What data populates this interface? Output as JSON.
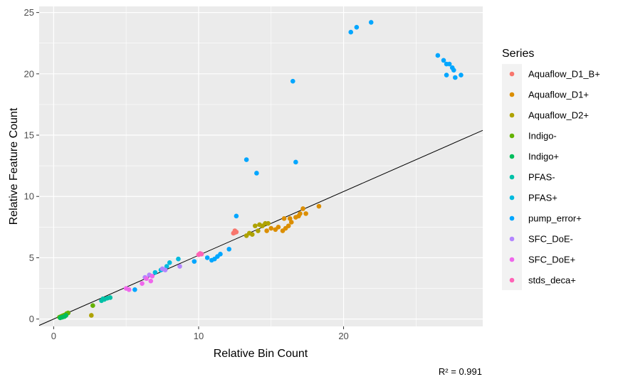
{
  "chart_data": {
    "type": "scatter",
    "xlabel": "Relative Bin Count",
    "ylabel": "Relative Feature Count",
    "xlim": [
      -1,
      29.6
    ],
    "ylim": [
      -0.6,
      25.5
    ],
    "x_ticks": [
      0,
      10,
      20
    ],
    "y_ticks": [
      0,
      5,
      10,
      15,
      20,
      25
    ],
    "x_tick_labels": [
      "0",
      "10",
      "20"
    ],
    "y_tick_labels": [
      "0",
      "5",
      "10",
      "15",
      "20",
      "25"
    ],
    "grid": true,
    "legend": {
      "title": "Series",
      "position": "right"
    },
    "caption": "R² = 0.991",
    "fit_line": {
      "slope": 0.52,
      "intercept": 0.0
    },
    "series": [
      {
        "name": "Aquaflow_D1_B+",
        "color": "#F8766D",
        "points": [
          [
            12.4,
            7.0
          ],
          [
            12.5,
            7.2
          ],
          [
            12.6,
            7.1
          ],
          [
            12.5,
            7.05
          ]
        ]
      },
      {
        "name": "Aquaflow_D1+",
        "color": "#DB8E00",
        "points": [
          [
            14.7,
            7.2
          ],
          [
            15.0,
            7.4
          ],
          [
            15.3,
            7.3
          ],
          [
            15.5,
            7.5
          ],
          [
            15.8,
            7.2
          ],
          [
            15.9,
            8.2
          ],
          [
            16.0,
            7.4
          ],
          [
            16.2,
            7.6
          ],
          [
            16.3,
            8.2
          ],
          [
            16.4,
            7.9
          ],
          [
            16.7,
            8.3
          ],
          [
            16.9,
            8.4
          ],
          [
            17.0,
            8.6
          ],
          [
            17.2,
            9.0
          ],
          [
            17.4,
            8.6
          ],
          [
            18.3,
            9.2
          ]
        ]
      },
      {
        "name": "Aquaflow_D2+",
        "color": "#AEA200",
        "points": [
          [
            2.6,
            0.3
          ],
          [
            13.3,
            6.8
          ],
          [
            13.5,
            7.0
          ],
          [
            13.7,
            6.9
          ],
          [
            13.9,
            7.6
          ],
          [
            14.1,
            7.2
          ],
          [
            14.2,
            7.7
          ],
          [
            14.4,
            7.6
          ],
          [
            14.6,
            7.8
          ],
          [
            14.8,
            7.8
          ]
        ]
      },
      {
        "name": "Indigo-",
        "color": "#64B200",
        "points": [
          [
            0.4,
            0.15
          ],
          [
            0.5,
            0.2
          ],
          [
            0.6,
            0.25
          ],
          [
            0.7,
            0.3
          ],
          [
            0.8,
            0.35
          ],
          [
            0.9,
            0.45
          ],
          [
            1.0,
            0.5
          ],
          [
            2.7,
            1.1
          ]
        ]
      },
      {
        "name": "Indigo+",
        "color": "#00BD5C",
        "points": [
          [
            0.45,
            0.1
          ],
          [
            0.6,
            0.15
          ],
          [
            0.75,
            0.2
          ],
          [
            0.85,
            0.3
          ]
        ]
      },
      {
        "name": "PFAS-",
        "color": "#00C1A7",
        "points": [
          [
            3.3,
            1.5
          ],
          [
            3.5,
            1.6
          ],
          [
            3.7,
            1.7
          ],
          [
            3.9,
            1.75
          ],
          [
            3.4,
            1.65
          ]
        ]
      },
      {
        "name": "PFAS+",
        "color": "#00BADE",
        "points": [
          [
            7.0,
            3.8
          ],
          [
            7.4,
            4.0
          ],
          [
            7.8,
            4.3
          ],
          [
            8.0,
            4.6
          ],
          [
            8.6,
            4.9
          ]
        ]
      },
      {
        "name": "pump_error+",
        "color": "#00A6FF",
        "points": [
          [
            5.6,
            2.4
          ],
          [
            9.7,
            4.7
          ],
          [
            10.6,
            5.0
          ],
          [
            10.9,
            4.8
          ],
          [
            11.1,
            4.9
          ],
          [
            11.3,
            5.1
          ],
          [
            11.5,
            5.3
          ],
          [
            12.1,
            5.7
          ],
          [
            12.6,
            8.4
          ],
          [
            13.3,
            13.0
          ],
          [
            14.0,
            11.9
          ],
          [
            16.5,
            19.4
          ],
          [
            16.7,
            12.8
          ],
          [
            20.5,
            23.4
          ],
          [
            20.9,
            23.8
          ],
          [
            21.9,
            24.2
          ],
          [
            26.5,
            21.5
          ],
          [
            26.9,
            21.1
          ],
          [
            27.1,
            20.8
          ],
          [
            27.3,
            20.8
          ],
          [
            27.5,
            20.5
          ],
          [
            27.6,
            20.3
          ],
          [
            27.1,
            19.9
          ],
          [
            27.7,
            19.7
          ],
          [
            28.1,
            19.9
          ]
        ]
      },
      {
        "name": "SFC_DoE-",
        "color": "#B385FF",
        "points": [
          [
            6.3,
            3.4
          ],
          [
            6.6,
            3.6
          ],
          [
            7.5,
            4.1
          ],
          [
            7.7,
            4.0
          ],
          [
            8.7,
            4.3
          ]
        ]
      },
      {
        "name": "SFC_DoE+",
        "color": "#EF67EB",
        "points": [
          [
            5.0,
            2.5
          ],
          [
            5.2,
            2.4
          ],
          [
            6.1,
            2.9
          ],
          [
            6.4,
            3.3
          ],
          [
            6.7,
            3.1
          ],
          [
            6.8,
            3.5
          ]
        ]
      },
      {
        "name": "stds_deca+",
        "color": "#FF63B6",
        "points": [
          [
            10.0,
            5.25
          ],
          [
            10.2,
            5.3
          ],
          [
            10.1,
            5.35
          ]
        ]
      }
    ]
  }
}
